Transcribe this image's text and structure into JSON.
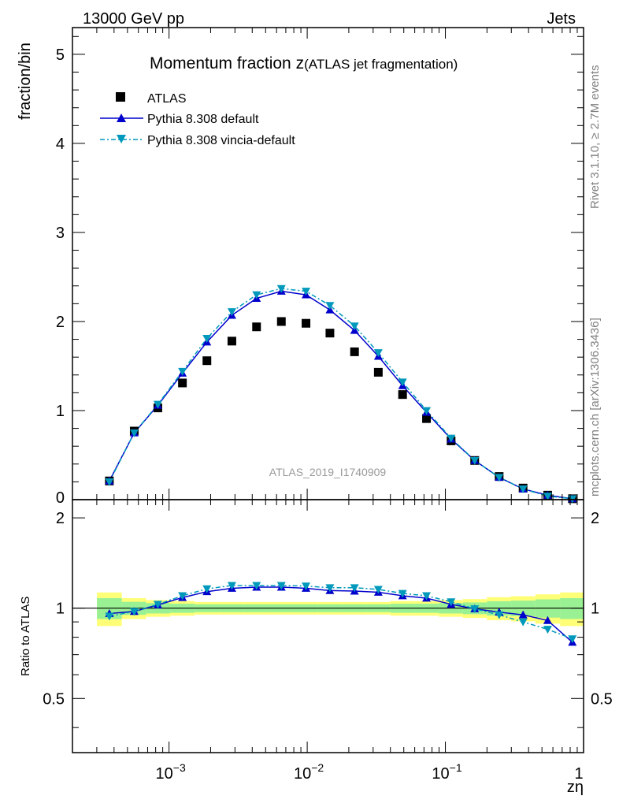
{
  "header": {
    "left": "13000 GeV pp",
    "right": "Jets"
  },
  "side_texts": {
    "rivet": "Rivet 3.1.10, ≥ 2.7M events",
    "source": "mcplots.cern.ch [arXiv:1306.3436]"
  },
  "chart_data": {
    "type": "scatter",
    "title_main": "Momentum fraction z",
    "title_sub": "(ATLAS jet fragmentation)",
    "analysis_label": "ATLAS_2019_I1740909",
    "xlabel": "zη",
    "ylabel": "fraction/bin",
    "ratio_ylabel": "Ratio to ATLAS",
    "x_scale": "log",
    "xlim": [
      0.0002,
      1.0
    ],
    "ylim": [
      0,
      5.3
    ],
    "ratio_ylim": [
      0.33,
      2.3
    ],
    "legend_position": "top-left",
    "x_tick_labels": [
      "10^-3",
      "10^-2",
      "10^-1",
      "1"
    ],
    "y_tick_labels": [
      "0",
      "1",
      "2",
      "3",
      "4",
      "5"
    ],
    "ratio_tick_labels": [
      "0.5",
      "1",
      "2"
    ],
    "x": [
      0.00037,
      0.00056,
      0.00083,
      0.00125,
      0.00188,
      0.00285,
      0.0043,
      0.0065,
      0.0098,
      0.0146,
      0.022,
      0.0327,
      0.049,
      0.073,
      0.11,
      0.163,
      0.245,
      0.365,
      0.55,
      0.83
    ],
    "series": [
      {
        "name": "ATLAS",
        "color": "#000000",
        "marker": "square",
        "values": [
          0.21,
          0.77,
          1.03,
          1.31,
          1.56,
          1.78,
          1.94,
          2.0,
          1.98,
          1.87,
          1.66,
          1.43,
          1.18,
          0.91,
          0.66,
          0.44,
          0.26,
          0.13,
          0.05,
          0.01
        ],
        "band": [
          0.08,
          0.05,
          0.04,
          0.035,
          0.03,
          0.03,
          0.03,
          0.03,
          0.03,
          0.03,
          0.03,
          0.03,
          0.035,
          0.035,
          0.04,
          0.045,
          0.055,
          0.06,
          0.07,
          0.08
        ]
      },
      {
        "name": "Pythia 8.308 default",
        "color": "#0000cc",
        "marker": "triangle-up",
        "line": "solid",
        "values": [
          0.21,
          0.75,
          1.06,
          1.42,
          1.77,
          2.07,
          2.26,
          2.34,
          2.3,
          2.13,
          1.9,
          1.61,
          1.28,
          0.98,
          0.68,
          0.44,
          0.25,
          0.12,
          0.05,
          0.01
        ],
        "ratio": [
          0.96,
          0.975,
          1.025,
          1.085,
          1.135,
          1.165,
          1.175,
          1.175,
          1.165,
          1.145,
          1.14,
          1.13,
          1.1,
          1.08,
          1.03,
          0.995,
          0.97,
          0.95,
          0.91,
          0.77
        ]
      },
      {
        "name": "Pythia 8.308 vincia-default",
        "color": "#0099bb",
        "marker": "triangle-down",
        "line": "dashdot",
        "values": [
          0.2,
          0.75,
          1.07,
          1.44,
          1.81,
          2.11,
          2.3,
          2.37,
          2.34,
          2.18,
          1.95,
          1.65,
          1.32,
          1.0,
          0.69,
          0.44,
          0.25,
          0.12,
          0.04,
          0.01
        ],
        "ratio": [
          0.94,
          0.975,
          1.03,
          1.1,
          1.16,
          1.19,
          1.19,
          1.19,
          1.185,
          1.17,
          1.17,
          1.155,
          1.12,
          1.1,
          1.05,
          0.995,
          0.95,
          0.9,
          0.85,
          0.79
        ]
      }
    ]
  }
}
